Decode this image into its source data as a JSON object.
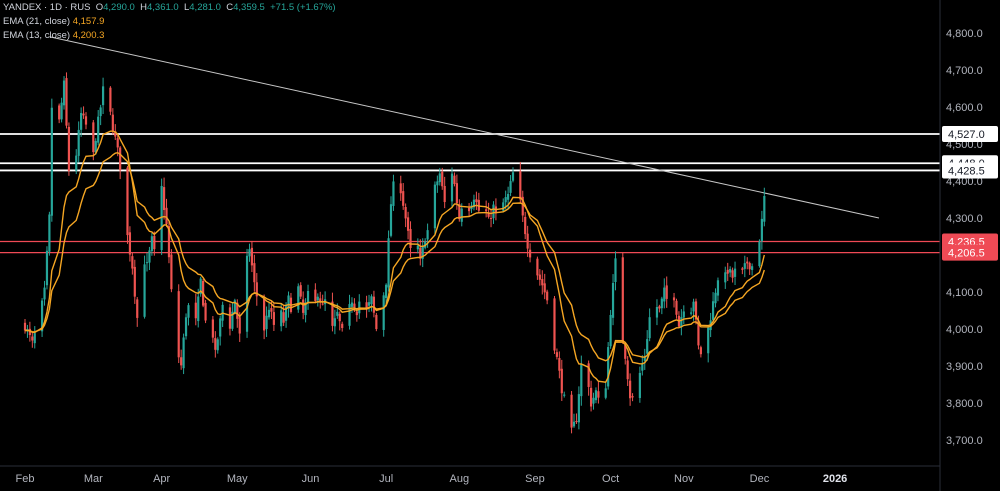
{
  "header": {
    "symbol": "YANDEX · 1D · RUS",
    "open_label": "O",
    "open": "4,290.0",
    "high_label": "H",
    "high": "4,361.0",
    "low_label": "L",
    "low": "4,281.0",
    "close_label": "C",
    "close": "4,359.5",
    "change": "+71.5 (+1.67%)"
  },
  "indicators": [
    {
      "label": "EMA (21, close)",
      "value": "4,157.9",
      "color": "#f5a623"
    },
    {
      "label": "EMA (13, close)",
      "value": "4,200.3",
      "color": "#f5a623"
    }
  ],
  "colors": {
    "background": "#000000",
    "up": "#26a69a",
    "down": "#ef5350",
    "ema": "#f5a623",
    "trendline": "#c7c7c7",
    "white_level": "#ffffff",
    "red_level": "#ef4a55"
  },
  "chart_data": {
    "type": "candlestick",
    "y_axis": {
      "ylim": [
        3630,
        4860
      ],
      "ticks": [
        {
          "value": 4800,
          "label": "4,800.0"
        },
        {
          "value": 4700,
          "label": "4,700.0"
        },
        {
          "value": 4600,
          "label": "4,600.0"
        },
        {
          "value": 4500,
          "label": "4,500.0"
        },
        {
          "value": 4400,
          "label": "4,400.0"
        },
        {
          "value": 4300,
          "label": "4,300.0"
        },
        {
          "value": 4100,
          "label": "4,100.0"
        },
        {
          "value": 4000,
          "label": "4,000.0"
        },
        {
          "value": 3900,
          "label": "3,900.0"
        },
        {
          "value": 3800,
          "label": "3,800.0"
        },
        {
          "value": 3700,
          "label": "3,700.0"
        }
      ]
    },
    "x_axis": {
      "ticks": [
        {
          "label": "Feb",
          "bold": false
        },
        {
          "label": "Mar",
          "bold": false
        },
        {
          "label": "Apr",
          "bold": false
        },
        {
          "label": "May",
          "bold": false
        },
        {
          "label": "Jun",
          "bold": false
        },
        {
          "label": "Jul",
          "bold": false
        },
        {
          "label": "Aug",
          "bold": false
        },
        {
          "label": "Sep",
          "bold": false
        },
        {
          "label": "Oct",
          "bold": false
        },
        {
          "label": "Nov",
          "bold": false
        },
        {
          "label": "Dec",
          "bold": false
        },
        {
          "label": "2026",
          "bold": true
        }
      ],
      "tick_days": [
        0,
        28,
        56,
        87,
        117,
        148,
        178,
        209,
        240,
        270,
        301,
        332
      ]
    },
    "levels": [
      {
        "value": 4527.0,
        "label": "4,527.0",
        "style": "white"
      },
      {
        "value": 4448.0,
        "label": "4,448.0",
        "style": "white"
      },
      {
        "value": 4428.5,
        "label": "4,428.5",
        "style": "white"
      },
      {
        "value": 4236.5,
        "label": "4,236.5",
        "style": "red"
      },
      {
        "value": 4206.5,
        "label": "4,206.5",
        "style": "red"
      }
    ],
    "trendline": {
      "from": {
        "day": 10,
        "value": 4790
      },
      "to": {
        "day": 350,
        "value": 4300
      }
    },
    "price_path": [
      [
        0,
        4010
      ],
      [
        3,
        3960
      ],
      [
        6,
        4030
      ],
      [
        8,
        4100
      ],
      [
        10,
        4300
      ],
      [
        11,
        4600
      ],
      [
        12,
        4780
      ],
      [
        14,
        4560
      ],
      [
        16,
        4660
      ],
      [
        18,
        4430
      ],
      [
        20,
        4420
      ],
      [
        23,
        4580
      ],
      [
        25,
        4550
      ],
      [
        27,
        4420
      ],
      [
        29,
        4520
      ],
      [
        31,
        4600
      ],
      [
        33,
        4690
      ],
      [
        35,
        4580
      ],
      [
        38,
        4480
      ],
      [
        40,
        4400
      ],
      [
        42,
        4250
      ],
      [
        44,
        4170
      ],
      [
        46,
        4030
      ],
      [
        48,
        4200
      ],
      [
        50,
        4170
      ],
      [
        52,
        4240
      ],
      [
        54,
        4170
      ],
      [
        56,
        4380
      ],
      [
        58,
        4280
      ],
      [
        60,
        4100
      ],
      [
        62,
        3950
      ],
      [
        64,
        3900
      ],
      [
        66,
        4040
      ],
      [
        68,
        4080
      ],
      [
        70,
        4020
      ],
      [
        72,
        4130
      ],
      [
        74,
        4020
      ],
      [
        76,
        4040
      ],
      [
        78,
        3930
      ],
      [
        80,
        4020
      ],
      [
        82,
        4110
      ],
      [
        84,
        4010
      ],
      [
        86,
        4080
      ],
      [
        88,
        3980
      ],
      [
        90,
        4150
      ],
      [
        92,
        4220
      ],
      [
        94,
        4120
      ],
      [
        96,
        4060
      ],
      [
        98,
        4000
      ],
      [
        100,
        4060
      ],
      [
        102,
        4010
      ],
      [
        104,
        4060
      ],
      [
        106,
        4020
      ],
      [
        108,
        4080
      ],
      [
        110,
        4040
      ],
      [
        112,
        4110
      ],
      [
        114,
        4040
      ],
      [
        116,
        4090
      ],
      [
        118,
        4040
      ],
      [
        120,
        4100
      ],
      [
        122,
        4060
      ],
      [
        124,
        4090
      ],
      [
        126,
        4000
      ],
      [
        128,
        4040
      ],
      [
        130,
        3990
      ],
      [
        132,
        4030
      ],
      [
        134,
        4080
      ],
      [
        136,
        4050
      ],
      [
        138,
        4100
      ],
      [
        140,
        4050
      ],
      [
        142,
        4080
      ],
      [
        144,
        4000
      ],
      [
        146,
        4060
      ],
      [
        148,
        4130
      ],
      [
        150,
        4340
      ],
      [
        152,
        4430
      ],
      [
        154,
        4380
      ],
      [
        156,
        4300
      ],
      [
        158,
        4210
      ],
      [
        160,
        4260
      ],
      [
        162,
        4180
      ],
      [
        164,
        4250
      ],
      [
        166,
        4280
      ],
      [
        168,
        4380
      ],
      [
        170,
        4420
      ],
      [
        172,
        4340
      ],
      [
        174,
        4460
      ],
      [
        176,
        4390
      ],
      [
        178,
        4300
      ],
      [
        180,
        4370
      ],
      [
        182,
        4330
      ],
      [
        184,
        4360
      ],
      [
        186,
        4320
      ],
      [
        188,
        4340
      ],
      [
        190,
        4290
      ],
      [
        192,
        4330
      ],
      [
        194,
        4280
      ],
      [
        196,
        4340
      ],
      [
        198,
        4360
      ],
      [
        200,
        4420
      ],
      [
        202,
        4380
      ],
      [
        204,
        4300
      ],
      [
        206,
        4230
      ],
      [
        208,
        4180
      ],
      [
        210,
        4150
      ],
      [
        212,
        4120
      ],
      [
        214,
        4080
      ],
      [
        216,
        3990
      ],
      [
        218,
        3920
      ],
      [
        220,
        3840
      ],
      [
        222,
        3780
      ],
      [
        224,
        3720
      ],
      [
        226,
        3760
      ],
      [
        228,
        3900
      ],
      [
        230,
        3880
      ],
      [
        232,
        3800
      ],
      [
        234,
        3830
      ],
      [
        236,
        3780
      ],
      [
        238,
        3850
      ],
      [
        240,
        4050
      ],
      [
        242,
        4180
      ],
      [
        244,
        4010
      ],
      [
        246,
        3930
      ],
      [
        248,
        3820
      ],
      [
        250,
        3800
      ],
      [
        252,
        3880
      ],
      [
        254,
        3930
      ],
      [
        256,
        4030
      ],
      [
        258,
        4070
      ],
      [
        260,
        4050
      ],
      [
        262,
        4100
      ],
      [
        264,
        4060
      ],
      [
        266,
        4090
      ],
      [
        268,
        4010
      ],
      [
        270,
        4060
      ],
      [
        272,
        4030
      ],
      [
        274,
        4080
      ],
      [
        276,
        3950
      ],
      [
        278,
        3920
      ],
      [
        280,
        4000
      ],
      [
        282,
        4070
      ],
      [
        284,
        4140
      ],
      [
        286,
        4120
      ],
      [
        288,
        4160
      ],
      [
        290,
        4140
      ],
      [
        292,
        4170
      ],
      [
        294,
        4150
      ],
      [
        296,
        4180
      ],
      [
        298,
        4170
      ],
      [
        300,
        4200
      ],
      [
        302,
        4290
      ],
      [
        303,
        4359.5
      ]
    ]
  }
}
